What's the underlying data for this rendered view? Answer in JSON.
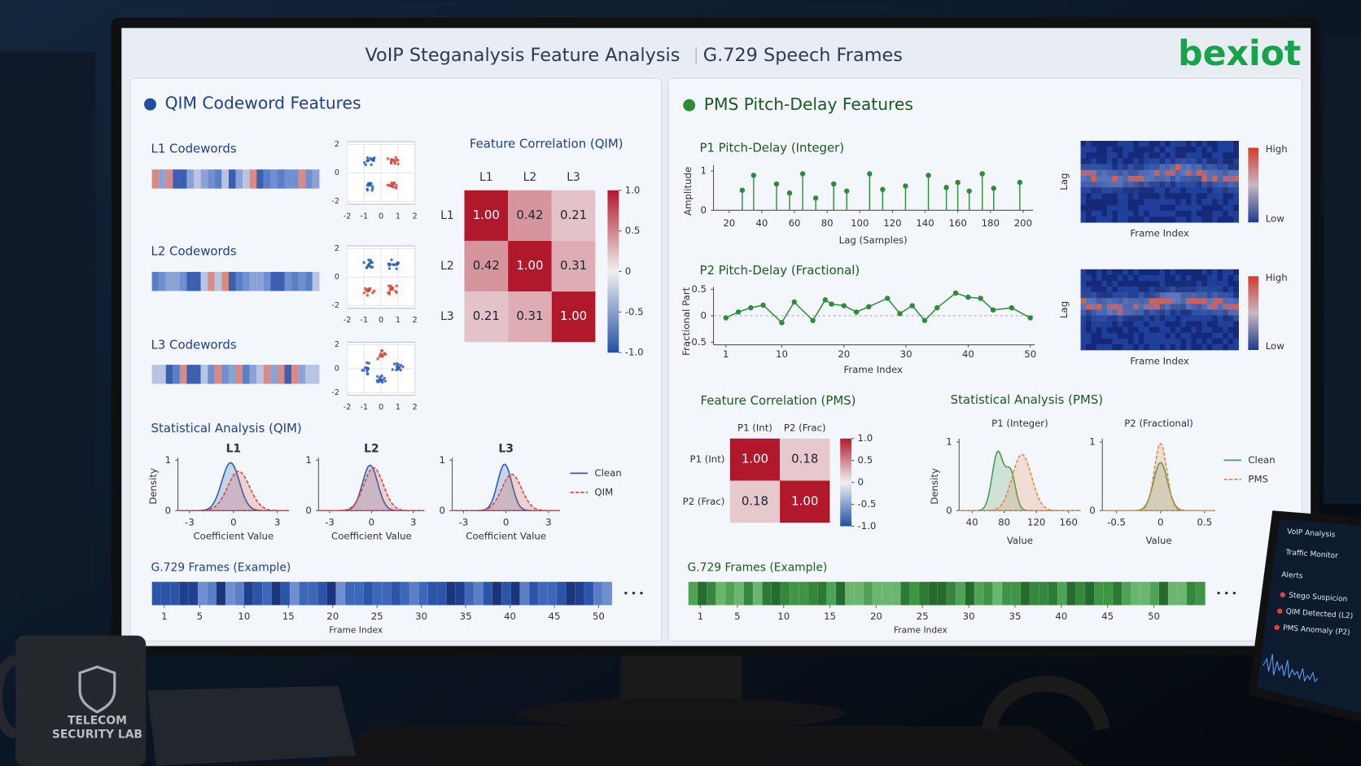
{
  "header": {
    "title": "VoIP Steganalysis Feature Analysis",
    "subtitle": "G.729 Speech Frames",
    "logo": "bexiot"
  },
  "qim": {
    "title": "QIM Codeword Features",
    "codewords": [
      "L1 Codewords",
      "L2 Codewords",
      "L3 Codewords"
    ],
    "scatter": {
      "xlim": [
        -2,
        2
      ],
      "ylim": [
        -2.2,
        2.2
      ],
      "xticks": [
        -2,
        -1,
        0,
        1,
        2
      ],
      "yticks": [
        2,
        0,
        -2
      ]
    },
    "correlation": {
      "title": "Feature Correlation (QIM)",
      "labels": [
        "L1",
        "L2",
        "L3"
      ],
      "values": [
        [
          1,
          0.42,
          0.21
        ],
        [
          0.42,
          1,
          0.31
        ],
        [
          0.21,
          0.31,
          1
        ]
      ],
      "value_labels": [
        [
          "1.00",
          "0.42",
          "0.21"
        ],
        [
          "0.42",
          "1.00",
          "0.31"
        ],
        [
          "0.21",
          "0.31",
          "1.00"
        ]
      ],
      "clim": [
        -1,
        1
      ],
      "cticks": [
        {
          "value": 1,
          "label": "1.0"
        },
        0.5,
        0,
        -0.5,
        {
          "value": -1,
          "label": "-1.0"
        }
      ]
    },
    "stats": {
      "title": "Statistical Analysis (QIM)",
      "ylabel": "Density",
      "xlabel": "Coefficient Value",
      "xlim": [
        -3.8,
        3.8
      ],
      "ylim": [
        0,
        1.05
      ],
      "xticks": [
        -3,
        0,
        3
      ],
      "yticks": [
        0,
        1
      ],
      "legend": [
        "Clean",
        "QIM"
      ],
      "colors": [
        "#2f5fb3",
        "#d9483b"
      ],
      "panels": [
        {
          "title": "L1",
          "clean": [
            {
              "mean": -0.2,
              "sd": 0.6,
              "peak": 0.95
            }
          ],
          "stego": [
            {
              "mean": 0.35,
              "sd": 0.75,
              "peak": 0.78
            }
          ]
        },
        {
          "title": "L2",
          "clean": [
            {
              "mean": -0.1,
              "sd": 0.55,
              "peak": 0.9
            }
          ],
          "stego": [
            {
              "mean": 0.15,
              "sd": 0.7,
              "peak": 0.85
            }
          ]
        },
        {
          "title": "L3",
          "clean": [
            {
              "mean": -0.1,
              "sd": 0.5,
              "peak": 0.92
            }
          ],
          "stego": [
            {
              "mean": 0.4,
              "sd": 0.7,
              "peak": 0.72
            }
          ]
        }
      ]
    },
    "frames": {
      "title": "G.729 Frames (Example)",
      "xlabel": "Frame Index",
      "xlim": [
        -0.4,
        51.5
      ],
      "xticks": [
        1,
        5,
        10,
        15,
        20,
        25,
        30,
        35,
        40,
        45,
        50
      ]
    }
  },
  "pms": {
    "title": "PMS Pitch-Delay Features",
    "p1": {
      "type": "stem",
      "title": "P1 Pitch-Delay (Integer)",
      "xlabel": "Lag (Samples)",
      "ylabel": "Amplitude",
      "x": [
        28,
        35,
        49,
        57,
        65,
        73,
        84,
        92,
        106,
        114,
        128,
        142,
        153,
        160,
        167,
        175,
        182,
        198
      ],
      "values": [
        0.51,
        0.89,
        0.67,
        0.44,
        0.93,
        0.31,
        0.67,
        0.49,
        0.93,
        0.53,
        0.62,
        0.89,
        0.58,
        0.71,
        0.49,
        0.93,
        0.56,
        0.71
      ],
      "xlim": [
        10.4,
        206
      ],
      "ylim": [
        0,
        1.15
      ],
      "xticks": [
        20,
        40,
        60,
        80,
        100,
        120,
        140,
        160,
        180,
        200
      ],
      "yticks": [
        0,
        1
      ],
      "color": "#2e8b3a"
    },
    "p2": {
      "type": "line",
      "title": "P2 Pitch-Delay (Fractional)",
      "xlabel": "Frame Index",
      "ylabel": "Fractional Part",
      "x": [
        1,
        3,
        5,
        7,
        10,
        12,
        15,
        17,
        18,
        20,
        22,
        24,
        27,
        29,
        31,
        33,
        35,
        38,
        40,
        42,
        44,
        47,
        50
      ],
      "values": [
        -0.04,
        0.07,
        0.15,
        0.2,
        -0.13,
        0.26,
        -0.09,
        0.3,
        0.22,
        0.19,
        0.07,
        0.17,
        0.33,
        0.04,
        0.19,
        -0.09,
        0.15,
        0.43,
        0.35,
        0.33,
        0.11,
        0.15,
        -0.04
      ],
      "xlim": [
        -1,
        50.7
      ],
      "ylim": [
        -0.55,
        0.55
      ],
      "xticks": [
        1,
        10,
        20,
        30,
        40,
        50
      ],
      "yticks": [
        0.5,
        0,
        -0.5
      ],
      "color": "#2e8b3a"
    },
    "heatmaps": [
      {
        "ylabel": "Lag",
        "xlabel": "Frame Index",
        "high": "High",
        "low": "Low"
      },
      {
        "ylabel": "Lag",
        "xlabel": "Frame Index",
        "high": "High",
        "low": "Low"
      }
    ],
    "correlation": {
      "title": "Feature Correlation (PMS)",
      "labels": [
        "P1 (Int)",
        "P2 (Frac)"
      ],
      "values": [
        [
          1,
          0.18
        ],
        [
          0.18,
          1
        ]
      ],
      "value_labels": [
        [
          "1.00",
          "0.18"
        ],
        [
          "0.18",
          "1.00"
        ]
      ],
      "clim": [
        -1,
        1
      ],
      "cticks": [
        {
          "value": 1,
          "label": "1.0"
        },
        0.5,
        0,
        -0.5,
        {
          "value": -1,
          "label": "-1.0"
        }
      ]
    },
    "stats": {
      "title": "Statistical Analysis (PMS)",
      "ylabel": "Density",
      "xlabel": "Value",
      "ylim": [
        0,
        1.05
      ],
      "yticks": [
        0,
        1
      ],
      "legend": [
        "Clean",
        "PMS"
      ],
      "colors": [
        "#4f9a5a",
        "#e8874a"
      ],
      "panels": [
        {
          "title": "P1 (Integer)",
          "xlim": [
            24,
            175
          ],
          "xticks": [
            40,
            80,
            120,
            160
          ],
          "clean": [
            {
              "mean": 72,
              "sd": 7,
              "peak": 0.85
            },
            {
              "mean": 88,
              "sd": 6,
              "peak": 0.55
            }
          ],
          "stego": [
            {
              "mean": 102,
              "sd": 12,
              "peak": 0.82
            }
          ]
        },
        {
          "title": "P2 (Fractional)",
          "xlim": [
            -0.66,
            0.62
          ],
          "xticks": [
            -0.5,
            0,
            0.5
          ],
          "clean": [
            {
              "mean": 0,
              "sd": 0.08,
              "peak": 0.7
            }
          ],
          "stego": [
            {
              "mean": 0,
              "sd": 0.07,
              "peak": 0.98
            }
          ]
        }
      ]
    },
    "frames": {
      "title": "G.729 Frames (Example)",
      "xlabel": "Frame Index",
      "xlim": [
        -0.3,
        55.5
      ],
      "xticks": [
        1,
        5,
        10,
        15,
        20,
        25,
        30,
        35,
        40,
        45,
        50
      ]
    }
  },
  "laptop": {
    "title": "VoIP Analysis",
    "menu": "Traffic Monitor",
    "alerts_title": "Alerts",
    "alerts": [
      "Stego Suspicion",
      "QIM Detected (L2)",
      "PMS Anomaly (P2)"
    ]
  },
  "mug": [
    "TELECOM",
    "SECURITY LAB"
  ]
}
